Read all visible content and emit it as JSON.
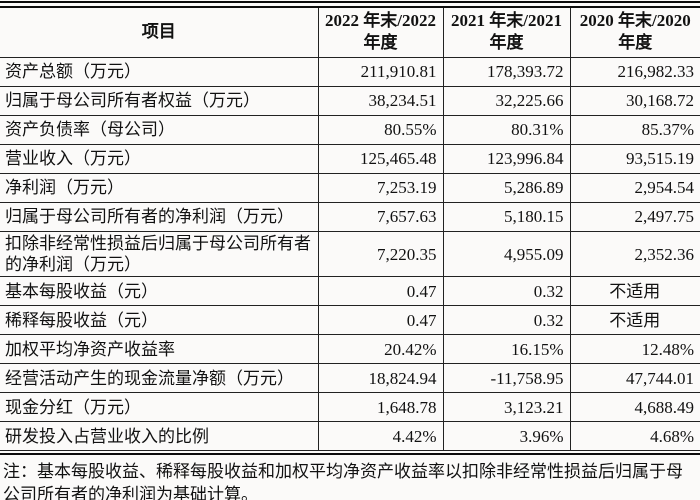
{
  "page": {
    "background_color": "#fbfaf9",
    "text_color": "#111111",
    "border_color": "#222222"
  },
  "table": {
    "header": {
      "item_col": "项目",
      "year_cols": [
        {
          "l1": "2022 年末/2022",
          "l2": "年度"
        },
        {
          "l1": "2021 年末/2021",
          "l2": "年度"
        },
        {
          "l1": "2020 年末/2020",
          "l2": "年度"
        }
      ]
    },
    "rows": [
      {
        "label": "资产总额（万元）",
        "values": [
          "211,910.81",
          "178,393.72",
          "216,982.33"
        ]
      },
      {
        "label": "归属于母公司所有者权益（万元）",
        "values": [
          "38,234.51",
          "32,225.66",
          "30,168.72"
        ]
      },
      {
        "label": "资产负债率（母公司）",
        "values": [
          "80.55%",
          "80.31%",
          "85.37%"
        ]
      },
      {
        "label": "营业收入（万元）",
        "values": [
          "125,465.48",
          "123,996.84",
          "93,515.19"
        ]
      },
      {
        "label": "净利润（万元）",
        "values": [
          "7,253.19",
          "5,286.89",
          "2,954.54"
        ]
      },
      {
        "label": "归属于母公司所有者的净利润（万元）",
        "values": [
          "7,657.63",
          "5,180.15",
          "2,497.75"
        ]
      },
      {
        "label": "扣除非经常性损益后归属于母公司所有者的净利润（万元）",
        "values": [
          "7,220.35",
          "4,955.09",
          "2,352.36"
        ]
      },
      {
        "label": "基本每股收益（元）",
        "values": [
          "0.47",
          "0.32",
          "不适用"
        ]
      },
      {
        "label": "稀释每股收益（元）",
        "values": [
          "0.47",
          "0.32",
          "不适用"
        ]
      },
      {
        "label": "加权平均净资产收益率",
        "values": [
          "20.42%",
          "16.15%",
          "12.48%"
        ]
      },
      {
        "label": "经营活动产生的现金流量净额（万元）",
        "values": [
          "18,824.94",
          "-11,758.95",
          "47,744.01"
        ]
      },
      {
        "label": "现金分红（万元）",
        "values": [
          "1,648.78",
          "3,123.21",
          "4,688.49"
        ]
      },
      {
        "label": "研发投入占营业收入的比例",
        "values": [
          "4.42%",
          "3.96%",
          "4.68%"
        ]
      }
    ]
  },
  "note": {
    "text": "注：基本每股收益、稀释每股收益和加权平均净资产收益率以扣除非经常性损益后归属于母公司所有者的净利润为基础计算。"
  }
}
